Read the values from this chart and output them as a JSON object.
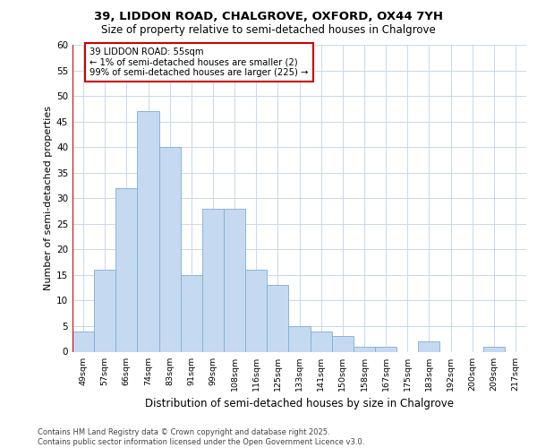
{
  "title1": "39, LIDDON ROAD, CHALGROVE, OXFORD, OX44 7YH",
  "title2": "Size of property relative to semi-detached houses in Chalgrove",
  "xlabel": "Distribution of semi-detached houses by size in Chalgrove",
  "ylabel": "Number of semi-detached properties",
  "categories": [
    "49sqm",
    "57sqm",
    "66sqm",
    "74sqm",
    "83sqm",
    "91sqm",
    "99sqm",
    "108sqm",
    "116sqm",
    "125sqm",
    "133sqm",
    "141sqm",
    "150sqm",
    "158sqm",
    "167sqm",
    "175sqm",
    "183sqm",
    "192sqm",
    "200sqm",
    "209sqm",
    "217sqm"
  ],
  "values": [
    4,
    16,
    32,
    47,
    40,
    15,
    28,
    28,
    16,
    13,
    5,
    4,
    3,
    1,
    1,
    0,
    2,
    0,
    0,
    1,
    0
  ],
  "bar_color": "#c5d9f0",
  "bar_edge_color": "#7eaed4",
  "highlight_color": "#cc0000",
  "annotation_text": "39 LIDDON ROAD: 55sqm\n← 1% of semi-detached houses are smaller (2)\n99% of semi-detached houses are larger (225) →",
  "annotation_box_color": "#ffffff",
  "annotation_box_edge": "#cc0000",
  "footer_text": "Contains HM Land Registry data © Crown copyright and database right 2025.\nContains public sector information licensed under the Open Government Licence v3.0.",
  "ylim": [
    0,
    60
  ],
  "yticks": [
    0,
    5,
    10,
    15,
    20,
    25,
    30,
    35,
    40,
    45,
    50,
    55,
    60
  ],
  "bg_color": "#ffffff",
  "grid_color": "#c8d8eb"
}
